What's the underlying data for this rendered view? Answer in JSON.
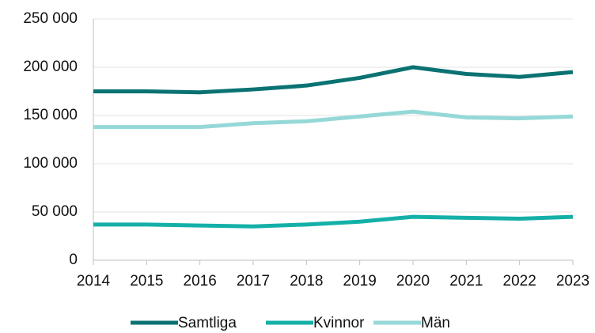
{
  "chart_data": {
    "type": "line",
    "x": [
      2014,
      2015,
      2016,
      2017,
      2018,
      2019,
      2020,
      2021,
      2022,
      2023
    ],
    "series": [
      {
        "name": "Samtliga",
        "color": "#0b7272",
        "values": [
          175000,
          175000,
          174000,
          177000,
          181000,
          189000,
          200000,
          193000,
          190000,
          195000
        ]
      },
      {
        "name": "Kvinnor",
        "color": "#14b0a8",
        "values": [
          37000,
          37000,
          36000,
          35000,
          37000,
          40000,
          45000,
          44000,
          43000,
          45000
        ]
      },
      {
        "name": "Män",
        "color": "#96d8d8",
        "values": [
          138000,
          138000,
          138000,
          142000,
          144000,
          149000,
          154000,
          148000,
          147000,
          149000
        ]
      }
    ],
    "xlim": [
      2014,
      2023
    ],
    "xticks": [
      2014,
      2015,
      2016,
      2017,
      2018,
      2019,
      2020,
      2021,
      2022,
      2023
    ],
    "ylim": [
      0,
      250000
    ],
    "yticks": [
      0,
      {
        "value": 50000,
        "label": "50 000"
      },
      {
        "value": 100000,
        "label": "100 000"
      },
      {
        "value": 150000,
        "label": "150 000"
      },
      {
        "value": 200000,
        "label": "200 000"
      },
      {
        "value": 250000,
        "label": "250 000"
      }
    ],
    "grid": true,
    "legend": "bottom"
  }
}
